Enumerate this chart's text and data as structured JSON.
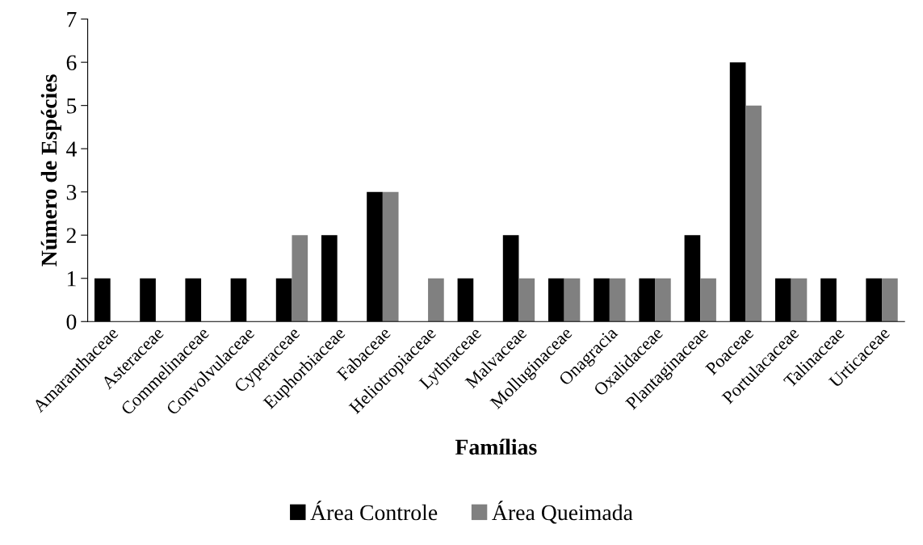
{
  "chart_data": {
    "type": "bar",
    "xlabel": "Famílias",
    "ylabel": "Número de Espécies",
    "categories": [
      "Amaranthaceae",
      "Asteraceae",
      "Commelinaceae",
      "Convolvulaceae",
      "Cyperaceae",
      "Euphorbiaceae",
      "Fabaceae",
      "Heliotropiaceae",
      "Lythraceae",
      "Malvaceae",
      "Molluginaceae",
      "Onagracia",
      "Oxalidaceae",
      "Plantaginaceae",
      "Poaceae",
      "Portulacaceae",
      "Talinaceae",
      "Urticaceae"
    ],
    "series": [
      {
        "name": "Área Controle",
        "color": "#000000",
        "values": [
          1,
          1,
          1,
          1,
          1,
          2,
          3,
          null,
          1,
          2,
          1,
          1,
          1,
          2,
          6,
          1,
          1,
          1
        ]
      },
      {
        "name": "Área Queimada",
        "color": "#808080",
        "values": [
          null,
          null,
          null,
          null,
          2,
          null,
          3,
          1,
          null,
          1,
          1,
          1,
          1,
          1,
          5,
          1,
          null,
          1
        ]
      }
    ],
    "ylim": [
      0,
      7
    ],
    "yticks": [
      0,
      1,
      2,
      3,
      4,
      5,
      6,
      7
    ],
    "grid": false,
    "legend": "bottom"
  }
}
